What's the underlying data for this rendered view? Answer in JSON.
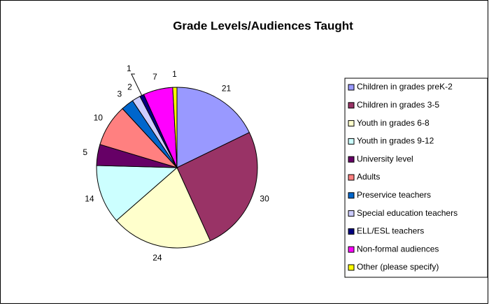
{
  "chart_data": {
    "type": "pie",
    "title": "Grade Levels/Audiences Taught",
    "categories": [
      "Children in grades preK-2",
      "Children in grades 3-5",
      "Youth in grades 6-8",
      "Youth in grades 9-12",
      "University level",
      "Adults",
      "Preservice teachers",
      "Special education teachers",
      "ELL/ESL teachers",
      "Non-formal audiences",
      "Other (please specify)"
    ],
    "values": [
      21,
      30,
      24,
      14,
      5,
      10,
      3,
      2,
      1,
      7,
      1
    ],
    "colors": [
      "#9999ff",
      "#993366",
      "#ffffcc",
      "#ccffff",
      "#660066",
      "#ff8080",
      "#0066cc",
      "#ccccff",
      "#000080",
      "#ff00ff",
      "#ffff00"
    ],
    "legend": "right"
  }
}
